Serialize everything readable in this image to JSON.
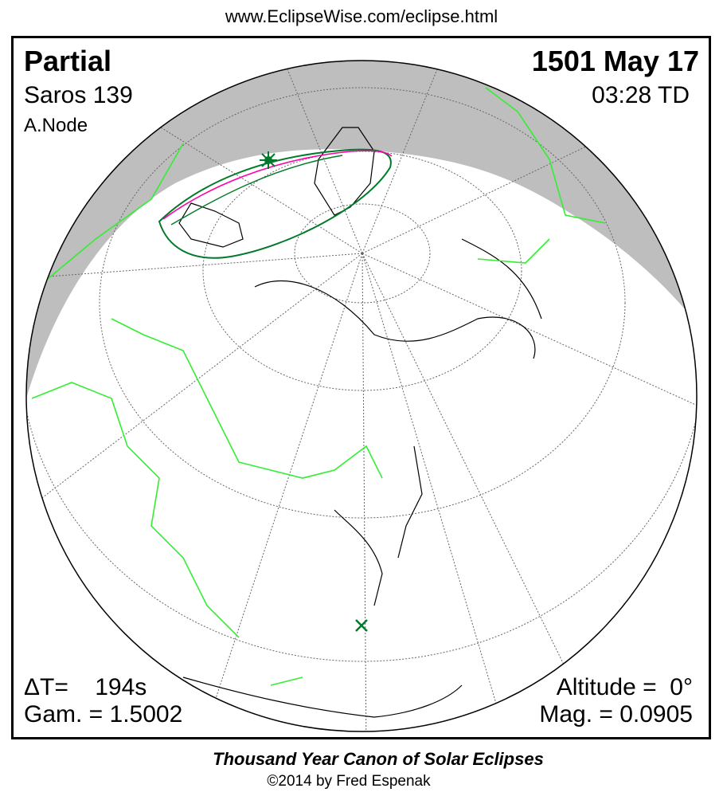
{
  "header": {
    "url": "www.EclipseWise.com/eclipse.html"
  },
  "eclipse": {
    "type": "Partial",
    "saros": "Saros 139",
    "node": "A.Node",
    "date": "1501 May 17",
    "time": "03:28 TD",
    "delta_t": "ΔT=    194s",
    "gamma": "Gam. = 1.5002",
    "altitude": "Altitude =  0°",
    "magnitude": "Mag. = 0.0905"
  },
  "footer": {
    "title": "Thousand Year Canon of Solar Eclipses",
    "copyright": "©2014 by Fred Espenak"
  },
  "colors": {
    "night": "#bebebe",
    "borders": "#33ee33",
    "path": "#007a2a",
    "central_line": "#ff00aa",
    "coast": "#000000"
  },
  "icons": {
    "greatest_eclipse": "star-marker",
    "subsolar_point": "x-marker"
  }
}
